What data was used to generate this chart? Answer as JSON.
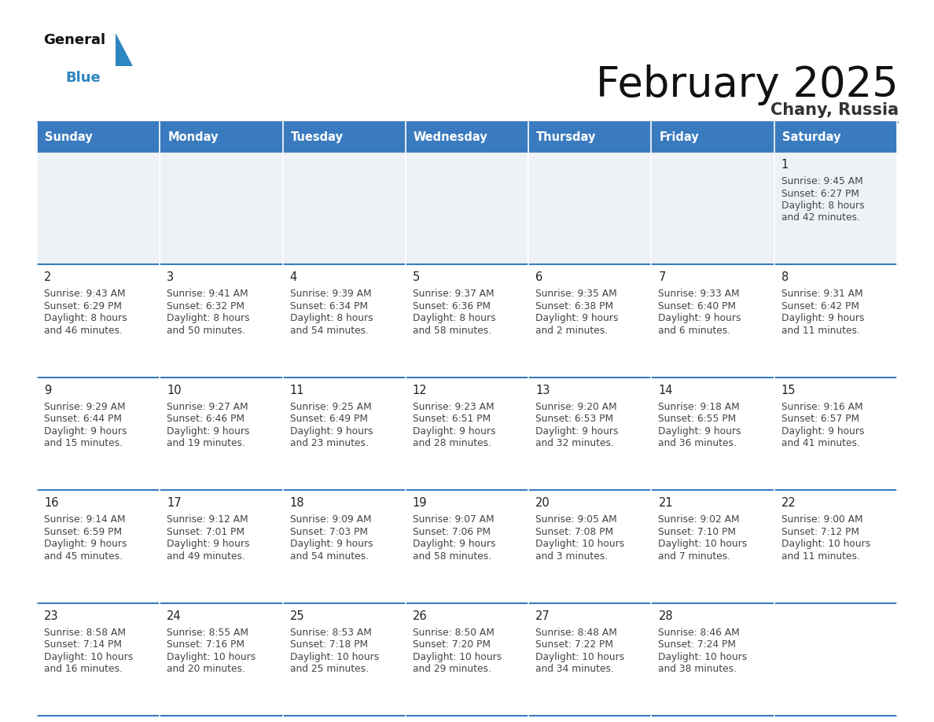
{
  "title": "February 2025",
  "subtitle": "Chany, Russia",
  "days_of_week": [
    "Sunday",
    "Monday",
    "Tuesday",
    "Wednesday",
    "Thursday",
    "Friday",
    "Saturday"
  ],
  "header_bg": "#3a7bbf",
  "header_text": "#ffffff",
  "cell_bg_light": "#eff2f5",
  "cell_bg_white": "#ffffff",
  "border_color": "#3a7bbf",
  "day_num_color": "#222222",
  "info_color": "#444444",
  "title_color": "#111111",
  "subtitle_color": "#333333",
  "logo_general_color": "#1a1a1a",
  "logo_blue_color": "#2e86c1",
  "calendar_data": [
    [
      {
        "day": null,
        "sunrise": null,
        "sunset": null,
        "daylight": null
      },
      {
        "day": null,
        "sunrise": null,
        "sunset": null,
        "daylight": null
      },
      {
        "day": null,
        "sunrise": null,
        "sunset": null,
        "daylight": null
      },
      {
        "day": null,
        "sunrise": null,
        "sunset": null,
        "daylight": null
      },
      {
        "day": null,
        "sunrise": null,
        "sunset": null,
        "daylight": null
      },
      {
        "day": null,
        "sunrise": null,
        "sunset": null,
        "daylight": null
      },
      {
        "day": 1,
        "sunrise": "9:45 AM",
        "sunset": "6:27 PM",
        "daylight": "8 hours\nand 42 minutes."
      }
    ],
    [
      {
        "day": 2,
        "sunrise": "9:43 AM",
        "sunset": "6:29 PM",
        "daylight": "8 hours\nand 46 minutes."
      },
      {
        "day": 3,
        "sunrise": "9:41 AM",
        "sunset": "6:32 PM",
        "daylight": "8 hours\nand 50 minutes."
      },
      {
        "day": 4,
        "sunrise": "9:39 AM",
        "sunset": "6:34 PM",
        "daylight": "8 hours\nand 54 minutes."
      },
      {
        "day": 5,
        "sunrise": "9:37 AM",
        "sunset": "6:36 PM",
        "daylight": "8 hours\nand 58 minutes."
      },
      {
        "day": 6,
        "sunrise": "9:35 AM",
        "sunset": "6:38 PM",
        "daylight": "9 hours\nand 2 minutes."
      },
      {
        "day": 7,
        "sunrise": "9:33 AM",
        "sunset": "6:40 PM",
        "daylight": "9 hours\nand 6 minutes."
      },
      {
        "day": 8,
        "sunrise": "9:31 AM",
        "sunset": "6:42 PM",
        "daylight": "9 hours\nand 11 minutes."
      }
    ],
    [
      {
        "day": 9,
        "sunrise": "9:29 AM",
        "sunset": "6:44 PM",
        "daylight": "9 hours\nand 15 minutes."
      },
      {
        "day": 10,
        "sunrise": "9:27 AM",
        "sunset": "6:46 PM",
        "daylight": "9 hours\nand 19 minutes."
      },
      {
        "day": 11,
        "sunrise": "9:25 AM",
        "sunset": "6:49 PM",
        "daylight": "9 hours\nand 23 minutes."
      },
      {
        "day": 12,
        "sunrise": "9:23 AM",
        "sunset": "6:51 PM",
        "daylight": "9 hours\nand 28 minutes."
      },
      {
        "day": 13,
        "sunrise": "9:20 AM",
        "sunset": "6:53 PM",
        "daylight": "9 hours\nand 32 minutes."
      },
      {
        "day": 14,
        "sunrise": "9:18 AM",
        "sunset": "6:55 PM",
        "daylight": "9 hours\nand 36 minutes."
      },
      {
        "day": 15,
        "sunrise": "9:16 AM",
        "sunset": "6:57 PM",
        "daylight": "9 hours\nand 41 minutes."
      }
    ],
    [
      {
        "day": 16,
        "sunrise": "9:14 AM",
        "sunset": "6:59 PM",
        "daylight": "9 hours\nand 45 minutes."
      },
      {
        "day": 17,
        "sunrise": "9:12 AM",
        "sunset": "7:01 PM",
        "daylight": "9 hours\nand 49 minutes."
      },
      {
        "day": 18,
        "sunrise": "9:09 AM",
        "sunset": "7:03 PM",
        "daylight": "9 hours\nand 54 minutes."
      },
      {
        "day": 19,
        "sunrise": "9:07 AM",
        "sunset": "7:06 PM",
        "daylight": "9 hours\nand 58 minutes."
      },
      {
        "day": 20,
        "sunrise": "9:05 AM",
        "sunset": "7:08 PM",
        "daylight": "10 hours\nand 3 minutes."
      },
      {
        "day": 21,
        "sunrise": "9:02 AM",
        "sunset": "7:10 PM",
        "daylight": "10 hours\nand 7 minutes."
      },
      {
        "day": 22,
        "sunrise": "9:00 AM",
        "sunset": "7:12 PM",
        "daylight": "10 hours\nand 11 minutes."
      }
    ],
    [
      {
        "day": 23,
        "sunrise": "8:58 AM",
        "sunset": "7:14 PM",
        "daylight": "10 hours\nand 16 minutes."
      },
      {
        "day": 24,
        "sunrise": "8:55 AM",
        "sunset": "7:16 PM",
        "daylight": "10 hours\nand 20 minutes."
      },
      {
        "day": 25,
        "sunrise": "8:53 AM",
        "sunset": "7:18 PM",
        "daylight": "10 hours\nand 25 minutes."
      },
      {
        "day": 26,
        "sunrise": "8:50 AM",
        "sunset": "7:20 PM",
        "daylight": "10 hours\nand 29 minutes."
      },
      {
        "day": 27,
        "sunrise": "8:48 AM",
        "sunset": "7:22 PM",
        "daylight": "10 hours\nand 34 minutes."
      },
      {
        "day": 28,
        "sunrise": "8:46 AM",
        "sunset": "7:24 PM",
        "daylight": "10 hours\nand 38 minutes."
      },
      {
        "day": null,
        "sunrise": null,
        "sunset": null,
        "daylight": null
      }
    ]
  ]
}
